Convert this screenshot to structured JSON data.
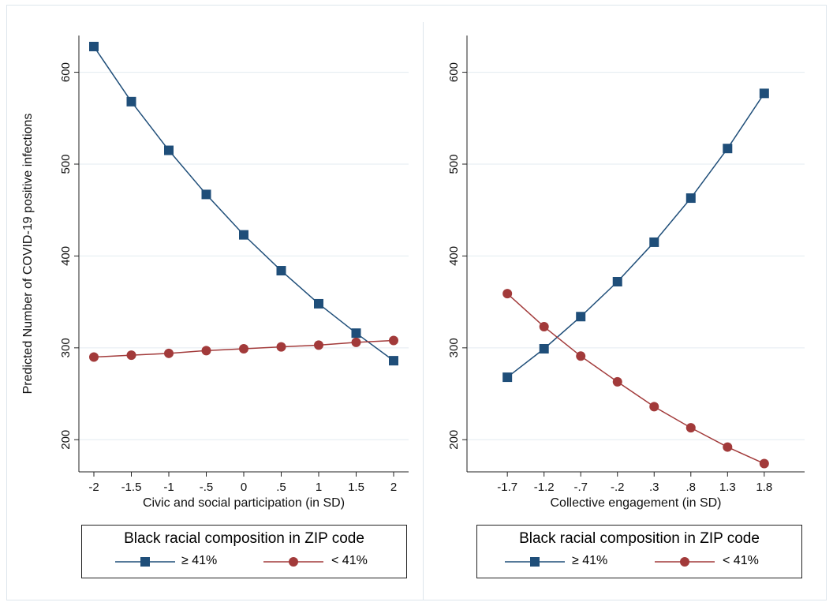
{
  "chart_data": [
    {
      "type": "line",
      "ylabel": "Predicted Number of COVID-19 positive infections",
      "xlabel": "Civic and social participation (in SD)",
      "x": [
        -2,
        -1.5,
        -1,
        -0.5,
        0,
        0.5,
        1,
        1.5,
        2
      ],
      "x_tick_labels": [
        "-2",
        "-1.5",
        "-1",
        "-.5",
        "0",
        ".5",
        "1",
        "1.5",
        "2"
      ],
      "y_ticks": [
        200,
        300,
        400,
        500,
        600
      ],
      "ylim": [
        165,
        640
      ],
      "grid": "horizontal",
      "series": [
        {
          "name": "≥ 41%",
          "color": "#1f4e79",
          "marker": "square",
          "values": [
            628,
            568,
            515,
            467,
            423,
            384,
            348,
            316,
            286
          ]
        },
        {
          "name": "< 41%",
          "color": "#a23a3a",
          "marker": "circle",
          "values": [
            290,
            292,
            294,
            297,
            299,
            301,
            303,
            306,
            308
          ]
        }
      ],
      "legend": {
        "title": "Black racial composition in ZIP code",
        "placement": "bottom"
      }
    },
    {
      "type": "line",
      "ylabel": "",
      "xlabel": "Collective engagement (in SD)",
      "x": [
        -1.7,
        -1.2,
        -0.7,
        -0.2,
        0.3,
        0.8,
        1.3,
        1.8
      ],
      "x_tick_labels": [
        "-1.7",
        "-1.2",
        "-.7",
        "-.2",
        ".3",
        ".8",
        "1.3",
        "1.8"
      ],
      "y_ticks": [
        200,
        300,
        400,
        500,
        600
      ],
      "ylim": [
        165,
        640
      ],
      "grid": "horizontal",
      "series": [
        {
          "name": "≥ 41%",
          "color": "#1f4e79",
          "marker": "square",
          "values": [
            268,
            299,
            334,
            372,
            415,
            463,
            517,
            577
          ]
        },
        {
          "name": "< 41%",
          "color": "#a23a3a",
          "marker": "circle",
          "values": [
            359,
            323,
            291,
            263,
            236,
            213,
            192,
            174
          ]
        }
      ],
      "legend": {
        "title": "Black racial composition in ZIP code",
        "placement": "bottom"
      }
    }
  ]
}
